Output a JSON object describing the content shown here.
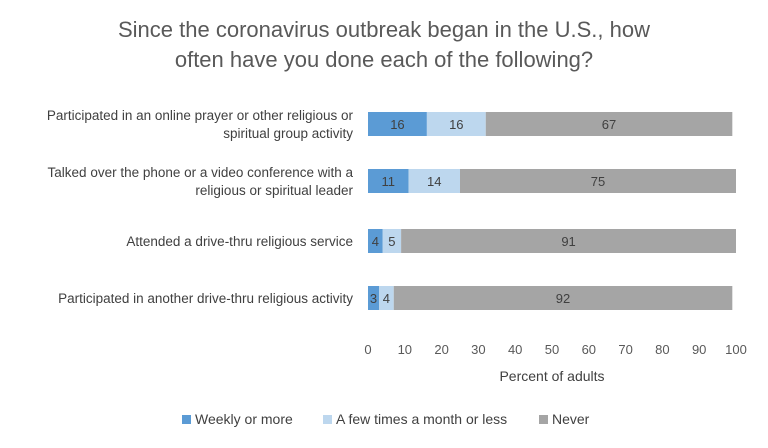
{
  "chart_data": {
    "type": "bar",
    "orientation": "horizontal",
    "stacked": true,
    "title_lines": [
      "Since the coronavirus outbreak began in the U.S., how",
      "often have you done each of the following?"
    ],
    "categories": [
      [
        "Participated in an online prayer or other religious or",
        "spiritual group activity"
      ],
      [
        "Talked over the phone or a video conference with a",
        "religious or spiritual leader"
      ],
      [
        "Attended a drive-thru religious service"
      ],
      [
        "Participated in another drive-thru religious activity"
      ]
    ],
    "series": [
      {
        "name": "Weekly or more",
        "color": "#5b9bd5",
        "values": [
          16,
          11,
          4,
          3
        ]
      },
      {
        "name": "A few times a month or less",
        "color": "#bdd7ee",
        "values": [
          16,
          14,
          5,
          4
        ]
      },
      {
        "name": "Never",
        "color": "#a5a5a5",
        "values": [
          67,
          75,
          91,
          92
        ]
      }
    ],
    "xlabel": "Percent of adults",
    "xlim": [
      0,
      100
    ],
    "xticks": [
      0,
      10,
      20,
      30,
      40,
      50,
      60,
      70,
      80,
      90,
      100
    ],
    "grid": false,
    "legend_position": "bottom"
  }
}
